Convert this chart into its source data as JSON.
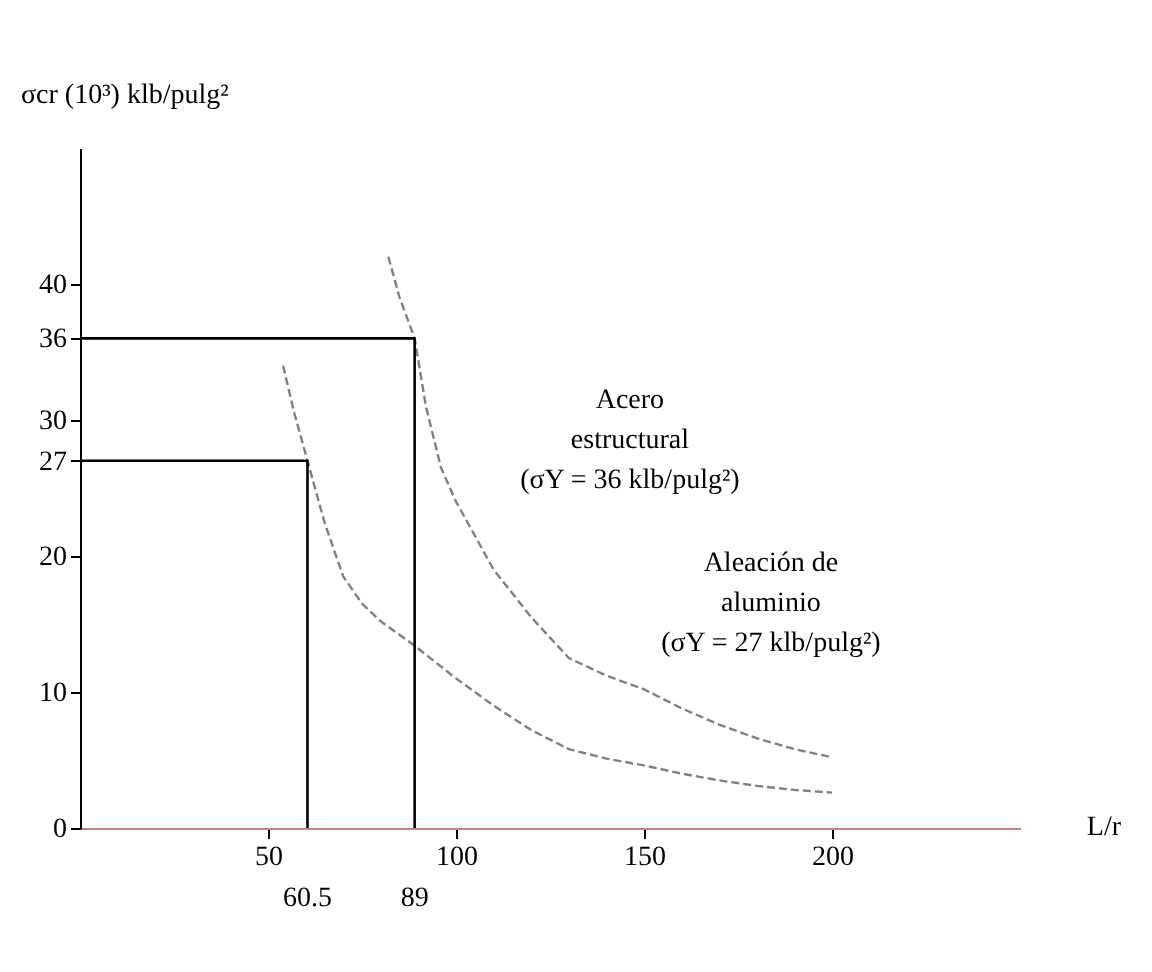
{
  "chart_data": {
    "type": "line",
    "ylabel": "σcr (10³) klb/pulg²",
    "xlabel": "L/r",
    "xlim": [
      0,
      250
    ],
    "ylim": [
      0,
      50
    ],
    "xticks": [
      50,
      100,
      150,
      200
    ],
    "yticks": [
      0,
      10,
      20,
      27,
      30,
      36,
      40
    ],
    "grid": false,
    "marker": "none",
    "series": [
      {
        "color": "#808080",
        "line_style": "dashed",
        "x": [
          82,
          85,
          89,
          92,
          96,
          100,
          110,
          120,
          130,
          140,
          150,
          160,
          170,
          180,
          190,
          200
        ],
        "values": [
          42,
          39,
          36,
          31,
          26.5,
          24,
          19,
          15.5,
          12.5,
          11.2,
          10.2,
          8.8,
          7.6,
          6.6,
          5.8,
          5.2
        ]
      },
      {
        "color": "#808080",
        "line_style": "dashed",
        "x": [
          54,
          57,
          60.5,
          65,
          70,
          75,
          80,
          89,
          100,
          110,
          120,
          130,
          140,
          150,
          160,
          170,
          180,
          190,
          200
        ],
        "values": [
          34,
          30.5,
          27,
          22.5,
          18.5,
          16.5,
          15.2,
          13.4,
          11,
          9,
          7.2,
          5.8,
          5.1,
          4.6,
          4.0,
          3.5,
          3.1,
          2.8,
          2.6
        ]
      },
      {
        "color": "#000000",
        "line_style": "solid",
        "x": [
          0,
          89,
          89
        ],
        "values": [
          36,
          36,
          0
        ]
      },
      {
        "color": "#000000",
        "line_style": "solid",
        "x": [
          0,
          60.5,
          60.5
        ],
        "values": [
          27,
          27,
          0
        ]
      }
    ],
    "annotations": [
      "Acero\nestructural\n(σY = 36 klb/pulg²)",
      "Aleación de\naluminio\n(σY = 27 klb/pulg²)",
      {
        "text": "60.5",
        "x": 60.5,
        "y": 0
      },
      {
        "text": "89",
        "x": 89,
        "y": 0
      }
    ]
  }
}
